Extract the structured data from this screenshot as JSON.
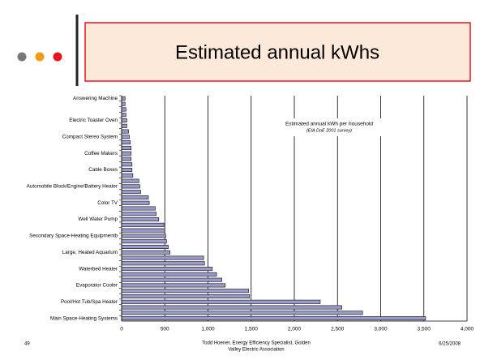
{
  "chart_data": {
    "type": "hbar",
    "title": "Estimated annual kWhs",
    "annotations": [
      "Estimated annual kWh per household",
      "(EIA DoE 2001 survey)"
    ],
    "categories": [
      "Answering Machine",
      null,
      null,
      null,
      "Electric Toaster Oven",
      null,
      null,
      "Compact Stereo System",
      null,
      null,
      "Coffee Makers",
      null,
      null,
      "Cable Boxes",
      null,
      null,
      "Automobile Block/Engine/Battery Heater",
      null,
      null,
      "Color TV",
      null,
      null,
      "Well Water Pump",
      null,
      null,
      "Secondary Space-Heating Equipmentb",
      null,
      null,
      "Large, Heated Aquarium",
      null,
      null,
      "Waterbed Heater",
      null,
      null,
      "Evaporator Cooler",
      null,
      null,
      "Pool/Hot Tub/Spa Heater",
      null,
      null,
      "Main Space-Heating Systems"
    ],
    "values": [
      40,
      40,
      50,
      50,
      60,
      60,
      80,
      90,
      100,
      110,
      110,
      110,
      120,
      120,
      130,
      200,
      210,
      220,
      310,
      320,
      390,
      400,
      430,
      490,
      500,
      510,
      520,
      540,
      560,
      950,
      960,
      1050,
      1100,
      1160,
      1200,
      1470,
      1480,
      2300,
      2550,
      2790,
      3520
    ],
    "color": "#9999cc",
    "xlim": [
      0,
      4000
    ],
    "xticks": [
      0,
      500,
      {
        "value": 1000,
        "label": "1,000"
      },
      {
        "value": 1500,
        "label": "1,500"
      },
      {
        "value": 2000,
        "label": "2,000"
      },
      {
        "value": 2500,
        "label": "2,500"
      },
      {
        "value": 3000,
        "label": "3,000"
      },
      {
        "value": 3500,
        "label": "3,500"
      },
      {
        "value": 4000,
        "label": "4,000"
      }
    ],
    "grid": true
  },
  "footer": {
    "slide_number": "49",
    "author": [
      "Todd Hoener, Energy Efficiency Specialist, Golden",
      "Valley Electric Association"
    ],
    "date": "6/25/2008"
  }
}
